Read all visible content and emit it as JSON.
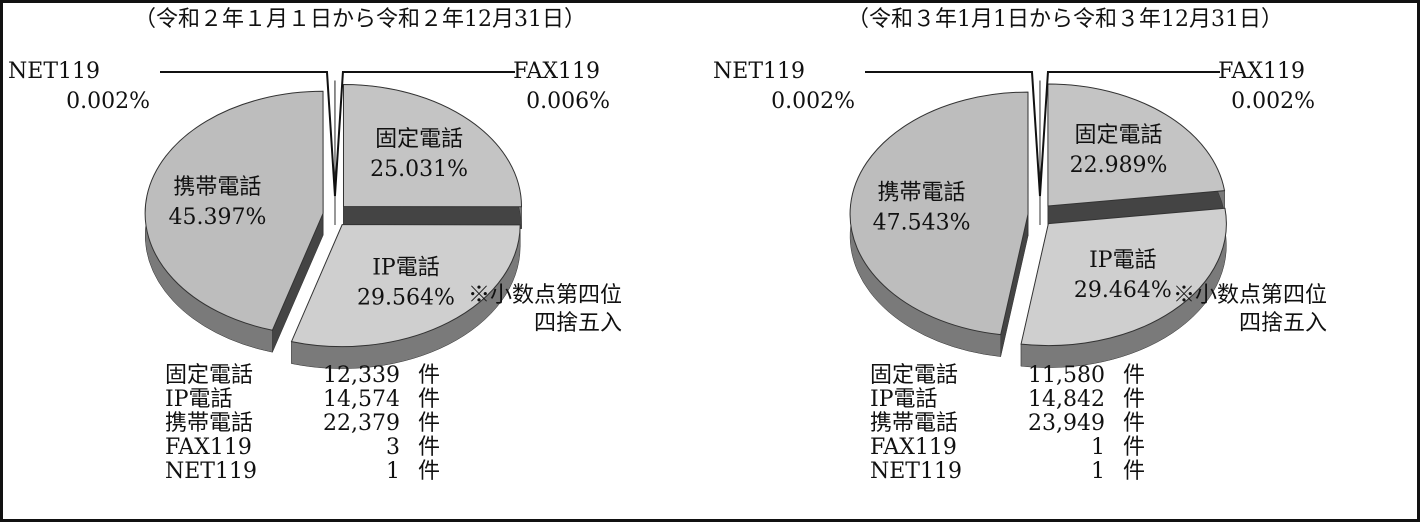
{
  "chart_data": [
    {
      "type": "pie",
      "title": "（令和２年１月１日から令和２年12月31日）",
      "categories": [
        "固定電話",
        "IP電話",
        "携帯電話",
        "FAX119",
        "NET119"
      ],
      "values": [
        25.031,
        29.564,
        45.397,
        0.006,
        0.002
      ],
      "value_labels": [
        "25.031%",
        "29.564%",
        "45.397%",
        "0.006%",
        "0.002%"
      ],
      "counts": [
        12339,
        14574,
        22379,
        3,
        1
      ],
      "count_labels": [
        "12,339",
        "14,574",
        "22,379",
        "3",
        "1"
      ],
      "unit": "件",
      "note": [
        "※小数点第四位",
        "四捨五入"
      ]
    },
    {
      "type": "pie",
      "title": "（令和３年1月1日から令和３年12月31日）",
      "categories": [
        "固定電話",
        "IP電話",
        "携帯電話",
        "FAX119",
        "NET119"
      ],
      "values": [
        22.989,
        29.464,
        47.543,
        0.002,
        0.002
      ],
      "value_labels": [
        "22.989%",
        "29.464%",
        "47.543%",
        "0.002%",
        "0.002%"
      ],
      "counts": [
        11580,
        14842,
        23949,
        1,
        1
      ],
      "count_labels": [
        "11,580",
        "14,842",
        "23,949",
        "1",
        "1"
      ],
      "unit": "件",
      "note": [
        "※小数点第四位",
        "四捨五入"
      ]
    }
  ]
}
